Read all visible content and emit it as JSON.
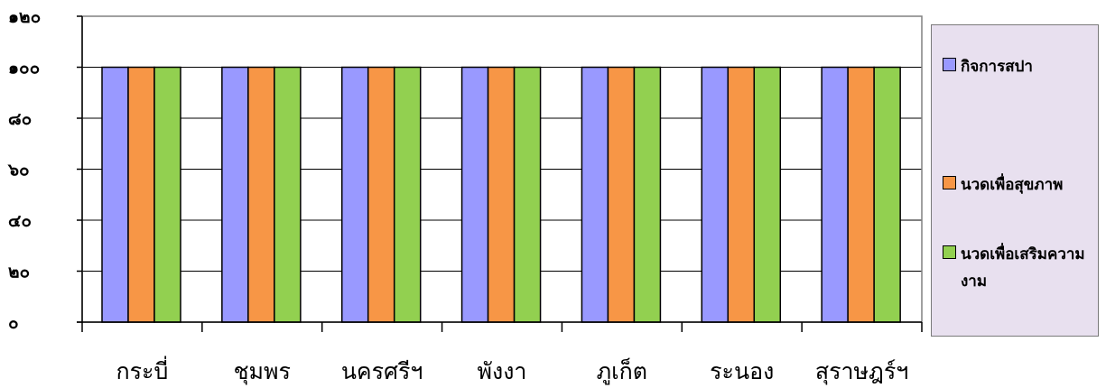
{
  "chart_data": {
    "type": "bar",
    "categories": [
      "กระบี่",
      "ชุมพร",
      "นครศรีฯ",
      "พังงา",
      "ภูเก็ต",
      "ระนอง",
      "สุราษฎร์ฯ"
    ],
    "series": [
      {
        "name": "กิจการสปา",
        "color": "#9999ff",
        "values": [
          100,
          100,
          100,
          100,
          100,
          100,
          100
        ]
      },
      {
        "name": "นวดเพื่อสุขภาพ",
        "color": "#f79646",
        "values": [
          100,
          100,
          100,
          100,
          100,
          100,
          100
        ]
      },
      {
        "name": "นวดเพื่อเสริมความงาม",
        "color": "#92d050",
        "values": [
          100,
          100,
          100,
          100,
          100,
          100,
          100
        ]
      }
    ],
    "y_tick_labels": [
      "๐",
      "๒๐",
      "๔๐",
      "๖๐",
      "๘๐",
      "๑๐๐",
      "๑๒๐"
    ],
    "y_ticks": [
      0,
      20,
      40,
      60,
      80,
      100,
      120
    ],
    "ylim": [
      0,
      120
    ],
    "grid": true,
    "legend_position": "right",
    "title": "",
    "xlabel": "",
    "ylabel": ""
  }
}
